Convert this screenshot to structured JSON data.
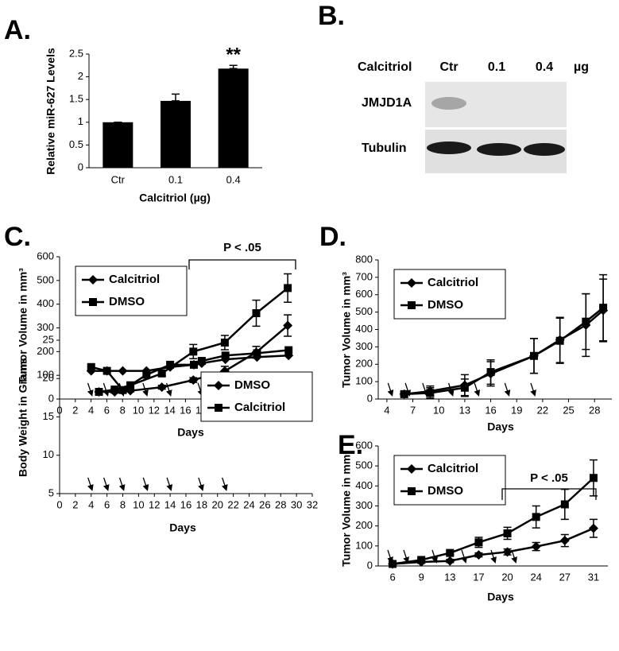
{
  "chart_data": [
    {
      "type": "bar",
      "panel": "A.",
      "categories": [
        "Ctr",
        "0.1",
        "0.4"
      ],
      "values": [
        1,
        1.47,
        2.18
      ],
      "errors": [
        0,
        0.15,
        0.07
      ],
      "color": "#000000",
      "ylim": [
        0,
        2.5
      ],
      "yticks": [
        0,
        0.5,
        1,
        1.5,
        2,
        2.5
      ],
      "ylabel": "Relative miR-627 Levels",
      "xlabel": "Calcitriol (µg)",
      "annotation": "**"
    },
    {
      "type": "line",
      "panel": "C.",
      "x": [
        5,
        7,
        9,
        13,
        17,
        21,
        25,
        29
      ],
      "xlim": [
        0,
        30
      ],
      "xticks": [
        0,
        2,
        4,
        6,
        8,
        10,
        12,
        14,
        16,
        18,
        20,
        22,
        24,
        26,
        28,
        30
      ],
      "ylim": [
        0,
        600
      ],
      "yticks": [
        0,
        100,
        200,
        300,
        400,
        500,
        600
      ],
      "ylabel": "Tumor Volume in mm³",
      "xlabel": "Days",
      "legend": "upper left",
      "annotation": "P < .05",
      "arrows": [
        4,
        6,
        8,
        11,
        14,
        18,
        21
      ],
      "series": [
        {
          "name": "Calcitriol",
          "color": "#000000",
          "marker": "diamond",
          "values": [
            30,
            30,
            35,
            50,
            80,
            118,
            197,
            310
          ],
          "errors": [
            5,
            5,
            5,
            8,
            10,
            20,
            25,
            45
          ]
        },
        {
          "name": "DMSO",
          "color": "#000000",
          "marker": "square",
          "values": [
            30,
            40,
            58,
            108,
            200,
            238,
            362,
            468
          ],
          "errors": [
            5,
            5,
            8,
            10,
            30,
            30,
            55,
            60
          ]
        }
      ]
    },
    {
      "type": "line",
      "x": [
        4,
        6,
        8,
        11,
        14,
        17,
        18,
        21,
        25,
        29
      ],
      "xlim": [
        0,
        32
      ],
      "xticks": [
        0,
        2,
        4,
        6,
        8,
        10,
        12,
        14,
        16,
        18,
        20,
        22,
        24,
        26,
        28,
        30,
        32
      ],
      "ylim": [
        5,
        25
      ],
      "yticks": [
        5,
        10,
        15,
        20,
        25
      ],
      "ylabel": "Body Weight in Grams",
      "xlabel": "Days",
      "legend": "right",
      "arrows": [
        4,
        6,
        8,
        11,
        14,
        18,
        21
      ],
      "series": [
        {
          "name": "DMSO",
          "color": "#000000",
          "marker": "diamond",
          "values": [
            21,
            21,
            21,
            21,
            21.5,
            21.8,
            22,
            22.5,
            22.8,
            23
          ]
        },
        {
          "name": "Calcitriol",
          "color": "#000000",
          "marker": "square",
          "values": [
            21.5,
            21,
            18.5,
            20.5,
            21.8,
            21.8,
            22.3,
            23,
            23.3,
            23.7
          ]
        }
      ]
    },
    {
      "type": "line",
      "panel": "D.",
      "x": [
        6,
        9,
        13,
        16,
        21,
        24,
        27,
        29
      ],
      "xlim": [
        3,
        30
      ],
      "xticks": [
        4,
        7,
        10,
        13,
        16,
        19,
        22,
        25,
        28
      ],
      "ylim": [
        0,
        800
      ],
      "yticks": [
        0,
        100,
        200,
        300,
        400,
        500,
        600,
        700,
        800
      ],
      "ylabel": "Tumor Volume in mm³",
      "xlabel": "Days",
      "legend": "upper left",
      "arrows": [
        4.5,
        6.5,
        8.5,
        11.5,
        14.5,
        18,
        21
      ],
      "series": [
        {
          "name": "Calcitriol",
          "color": "#000000",
          "marker": "diamond",
          "values": [
            28,
            45,
            80,
            145,
            248,
            340,
            425,
            510
          ],
          "errors": [
            10,
            30,
            60,
            70,
            100,
            130,
            180,
            180
          ]
        },
        {
          "name": "DMSO",
          "color": "#000000",
          "marker": "square",
          "values": [
            28,
            35,
            65,
            155,
            248,
            335,
            445,
            525
          ],
          "errors": [
            10,
            30,
            50,
            70,
            100,
            130,
            160,
            190
          ]
        }
      ]
    },
    {
      "type": "line",
      "panel": "E.",
      "categories": [
        "6",
        "9",
        "13",
        "17",
        "20",
        "24",
        "27",
        "31"
      ],
      "ylim": [
        0,
        600
      ],
      "yticks": [
        0,
        100,
        200,
        300,
        400,
        500,
        600
      ],
      "ylabel": "Tumor Volume in mm³",
      "xlabel": "Days",
      "legend": "upper left",
      "annotation": "P < .05",
      "series": [
        {
          "name": "Calcitriol",
          "color": "#000000",
          "marker": "diamond",
          "values": [
            10,
            20,
            25,
            55,
            70,
            97,
            127,
            188
          ],
          "errors": [
            5,
            5,
            8,
            10,
            15,
            20,
            30,
            45
          ]
        },
        {
          "name": "DMSO",
          "color": "#000000",
          "marker": "square",
          "values": [
            10,
            30,
            65,
            118,
            163,
            245,
            308,
            440
          ],
          "errors": [
            5,
            8,
            10,
            25,
            30,
            55,
            75,
            90
          ]
        }
      ]
    }
  ],
  "blot": {
    "panel": "B.",
    "row_header": "Calcitriol",
    "lanes": [
      "Ctr",
      "0.1",
      "0.4"
    ],
    "unit": "µg",
    "bands": [
      "JMJD1A",
      "Tubulin"
    ]
  }
}
